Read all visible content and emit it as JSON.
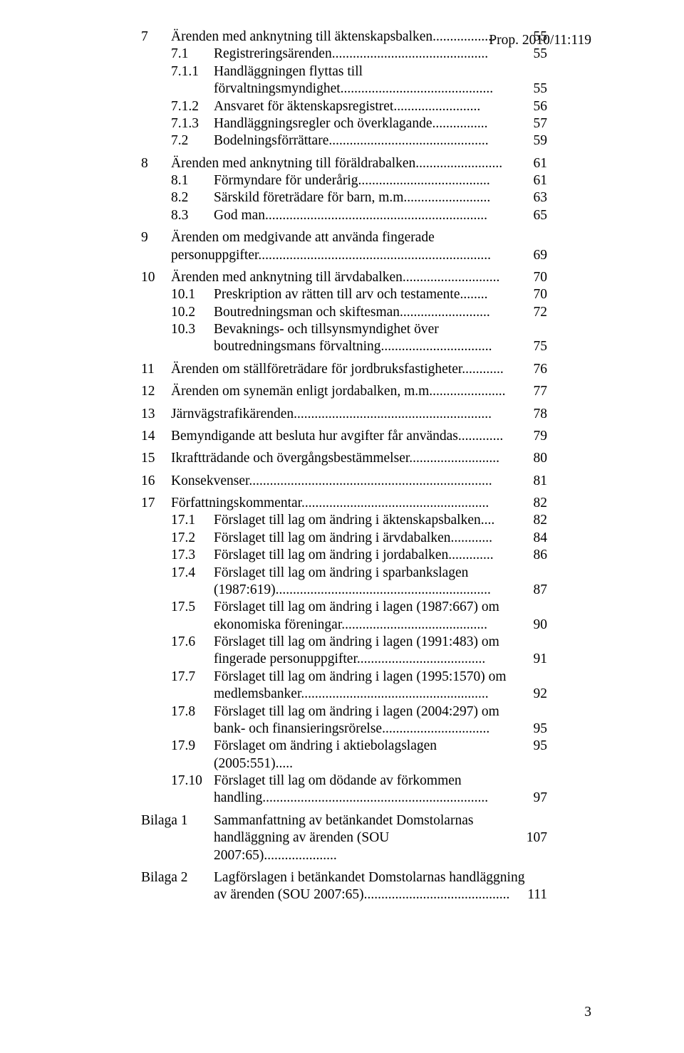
{
  "header": "Prop. 2010/11:119",
  "page_number": "3",
  "toc": [
    {
      "type": "chapter",
      "num": "7",
      "title": "Ärenden med anknytning till äktenskapsbalken",
      "dots": "..................",
      "page": "55"
    },
    {
      "type": "sub",
      "num": "7.1",
      "title": "Registreringsärenden",
      "dots": ".............................................",
      "page": "55"
    },
    {
      "type": "sub",
      "num": "7.1.1",
      "title": "Handläggningen flyttas till",
      "cont": "förvaltningsmyndighet",
      "dots": "............................................",
      "page": "55"
    },
    {
      "type": "sub",
      "num": "7.1.2",
      "title": "Ansvaret för äktenskapsregistret",
      "dots": ".........................",
      "page": "56"
    },
    {
      "type": "sub",
      "num": "7.1.3",
      "title": "Handläggningsregler och överklagande",
      "dots": "................",
      "page": "57"
    },
    {
      "type": "sub",
      "num": "7.2",
      "title": "Bodelningsförrättare",
      "dots": "..............................................",
      "page": "59"
    },
    {
      "type": "gap"
    },
    {
      "type": "chapter",
      "num": "8",
      "title": "Ärenden med anknytning till föräldrabalken",
      "dots": ".........................",
      "page": "61"
    },
    {
      "type": "sub",
      "num": "8.1",
      "title": "Förmyndare för underårig",
      "dots": "......................................",
      "page": "61"
    },
    {
      "type": "sub",
      "num": "8.2",
      "title": "Särskild företrädare för barn, m.m.",
      "dots": "........................",
      "page": "63"
    },
    {
      "type": "sub",
      "num": "8.3",
      "title": "God man",
      "dots": "................................................................",
      "page": "65"
    },
    {
      "type": "gap"
    },
    {
      "type": "chapter",
      "num": "9",
      "title": "Ärenden om medgivande att använda fingerade",
      "cont": "personuppgifter",
      "dots": "...................................................................",
      "page": "69"
    },
    {
      "type": "gap"
    },
    {
      "type": "chapter",
      "num": "10",
      "title": "Ärenden med anknytning till ärvdabalken",
      "dots": "............................",
      "page": "70"
    },
    {
      "type": "sub",
      "num": "10.1",
      "title": "Preskription av rätten till arv och testamente",
      "dots": "........",
      "page": "70"
    },
    {
      "type": "sub",
      "num": "10.2",
      "title": "Boutredningsman och skiftesman",
      "dots": "..........................",
      "page": "72"
    },
    {
      "type": "sub",
      "num": "10.3",
      "title": "Bevaknings- och tillsynsmyndighet över",
      "cont": "boutredningsmans förvaltning",
      "dots": "................................",
      "page": "75"
    },
    {
      "type": "gap"
    },
    {
      "type": "chapter",
      "num": "11",
      "title": "Ärenden om ställföreträdare för jordbruksfastigheter",
      "dots": "............",
      "page": "76"
    },
    {
      "type": "gap"
    },
    {
      "type": "chapter",
      "num": "12",
      "title": "Ärenden om synemän enligt jordabalken, m.m.",
      "dots": ".....................",
      "page": "77"
    },
    {
      "type": "gap"
    },
    {
      "type": "chapter",
      "num": "13",
      "title": "Järnvägstrafikärenden",
      "dots": ".........................................................",
      "page": "78"
    },
    {
      "type": "gap"
    },
    {
      "type": "chapter",
      "num": "14",
      "title": "Bemyndigande att besluta hur avgifter får användas",
      "dots": ".............",
      "page": "79"
    },
    {
      "type": "gap"
    },
    {
      "type": "chapter",
      "num": "15",
      "title": "Ikraftträdande och övergångsbestämmelser",
      "dots": "..........................",
      "page": "80"
    },
    {
      "type": "gap"
    },
    {
      "type": "chapter",
      "num": "16",
      "title": "Konsekvenser",
      "dots": "......................................................................",
      "page": "81"
    },
    {
      "type": "gap"
    },
    {
      "type": "chapter",
      "num": "17",
      "title": "Författningskommentar",
      "dots": "......................................................",
      "page": "82"
    },
    {
      "type": "sub",
      "num": "17.1",
      "title": "Förslaget till lag om ändring i äktenskapsbalken",
      "dots": "....",
      "page": "82"
    },
    {
      "type": "sub",
      "num": "17.2",
      "title": "Förslaget till lag om ändring i ärvdabalken",
      "dots": "............",
      "page": "84"
    },
    {
      "type": "sub",
      "num": "17.3",
      "title": "Förslaget till lag om ändring i jordabalken",
      "dots": ".............",
      "page": "86"
    },
    {
      "type": "sub",
      "num": "17.4",
      "title": "Förslaget till lag om ändring i sparbankslagen",
      "cont": "(1987:619)",
      "dots": "..............................................................",
      "page": "87"
    },
    {
      "type": "sub",
      "num": "17.5",
      "title": "Förslaget till lag om ändring i lagen (1987:667) om",
      "cont": "ekonomiska föreningar",
      "dots": "..........................................",
      "page": "90"
    },
    {
      "type": "sub",
      "num": "17.6",
      "title": "Förslaget till lag om ändring i lagen (1991:483) om",
      "cont": "fingerade personuppgifter",
      "dots": ".....................................",
      "page": "91"
    },
    {
      "type": "sub",
      "num": "17.7",
      "title": "Förslaget till lag om ändring i lagen (1995:1570) om",
      "cont": "medlemsbanker",
      "dots": "......................................................",
      "page": "92"
    },
    {
      "type": "sub",
      "num": "17.8",
      "title": "Förslaget till lag om ändring i lagen (2004:297) om",
      "cont": "bank- och finansieringsrörelse",
      "dots": "...............................",
      "page": "95"
    },
    {
      "type": "sub",
      "num": "17.9",
      "title": "Förslaget om ändring i aktiebolagslagen (2005:551)",
      "dots": ".....",
      "page": "95"
    },
    {
      "type": "sub",
      "num": "17.10",
      "title": "Förslaget till lag om dödande av förkommen",
      "cont": "handling",
      "dots": ".................................................................",
      "page": "97"
    },
    {
      "type": "gap"
    },
    {
      "type": "bilaga",
      "num": "Bilaga 1",
      "title": "Sammanfattning av betänkandet Domstolarnas",
      "cont": "handläggning av ärenden (SOU 2007:65)",
      "dots": ".....................",
      "page": "107"
    },
    {
      "type": "gap"
    },
    {
      "type": "bilaga",
      "num": "Bilaga 2",
      "title": "Lagförslagen i betänkandet Domstolarnas handläggning",
      "cont": "av ärenden (SOU 2007:65)",
      "dots": "..........................................",
      "page": "111"
    }
  ]
}
